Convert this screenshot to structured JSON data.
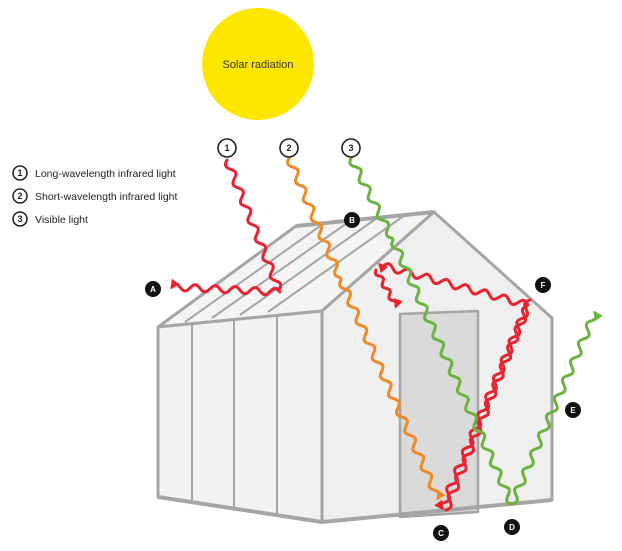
{
  "sun": {
    "label": "Solar radiation",
    "color": "#FFE600"
  },
  "legend": [
    {
      "num": "1",
      "label": "Long-wavelength infrared light"
    },
    {
      "num": "2",
      "label": "Short-wavelength infrared light"
    },
    {
      "num": "3",
      "label": "Visible light"
    }
  ],
  "ray_colors": {
    "long_ir": "#E8232F",
    "short_ir": "#F08A24",
    "visible": "#6DB33F"
  },
  "letters": [
    "A",
    "B",
    "C",
    "D",
    "E",
    "F"
  ]
}
